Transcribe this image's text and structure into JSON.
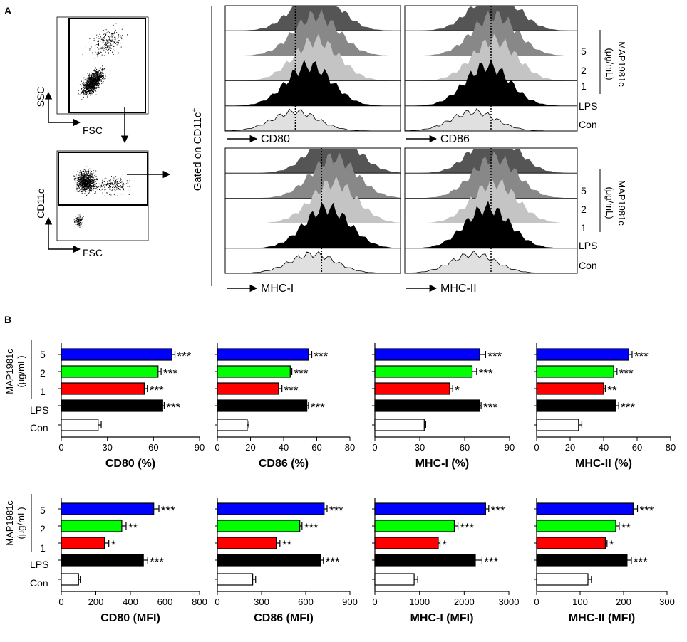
{
  "panel_a": {
    "label": "A",
    "gate_title": "Gated on CD11c",
    "gate_sup": "+",
    "dot1": {
      "y_label": "SSC",
      "x_label": "FSC"
    },
    "dot2": {
      "y_label": "CD11c",
      "x_label": "FSC"
    },
    "groups": [
      "5",
      "2",
      "1",
      "LPS",
      "Con"
    ],
    "dose_label": "MAP1981c",
    "dose_unit": "(μg/mL)",
    "histograms": [
      {
        "marker": "CD80"
      },
      {
        "marker": "CD86"
      },
      {
        "marker": "MHC-I"
      },
      {
        "marker": "MHC-II"
      }
    ],
    "colors": {
      "g5": "#555555",
      "g2": "#888888",
      "g1": "#c4c4c4",
      "lps": "#000000",
      "con": "#e0e0e0"
    }
  },
  "panel_b": {
    "label": "B",
    "dose_label": "MAP1981c",
    "dose_unit": "(μg/mL)",
    "groups": [
      "5",
      "2",
      "1",
      "LPS",
      "Con"
    ],
    "colors": [
      "#0000ff",
      "#00ff00",
      "#ff0000",
      "#000000",
      "#ffffff"
    ]
  },
  "chart_data": [
    {
      "type": "bar",
      "orientation": "horizontal",
      "title": "",
      "xlabel": "CD80 (%)",
      "categories": [
        "5",
        "2",
        "1",
        "LPS",
        "Con"
      ],
      "values": [
        72,
        63,
        54,
        66,
        24
      ],
      "errors": [
        2,
        2,
        2,
        1,
        2
      ],
      "significance": [
        "***",
        "***",
        "***",
        "***",
        ""
      ],
      "xlim": [
        0,
        90
      ],
      "ticks": [
        0,
        30,
        60,
        90
      ]
    },
    {
      "type": "bar",
      "orientation": "horizontal",
      "title": "",
      "xlabel": "CD86 (%)",
      "categories": [
        "5",
        "2",
        "1",
        "LPS",
        "Con"
      ],
      "values": [
        55,
        44,
        37,
        54,
        18
      ],
      "errors": [
        2,
        1,
        2,
        1,
        1
      ],
      "significance": [
        "***",
        "***",
        "***",
        "***",
        ""
      ],
      "xlim": [
        0,
        80
      ],
      "ticks": [
        0,
        20,
        40,
        60,
        80
      ]
    },
    {
      "type": "bar",
      "orientation": "horizontal",
      "title": "",
      "xlabel": "MHC-I (%)",
      "categories": [
        "5",
        "2",
        "1",
        "LPS",
        "Con"
      ],
      "values": [
        70,
        65,
        50,
        70,
        33
      ],
      "errors": [
        4,
        3,
        2,
        1,
        1
      ],
      "significance": [
        "***",
        "***",
        "*",
        "***",
        ""
      ],
      "xlim": [
        0,
        90
      ],
      "ticks": [
        0,
        30,
        60,
        90
      ]
    },
    {
      "type": "bar",
      "orientation": "horizontal",
      "title": "",
      "xlabel": "MHC-II (%)",
      "categories": [
        "5",
        "2",
        "1",
        "LPS",
        "Con"
      ],
      "values": [
        55,
        46,
        40,
        47,
        25
      ],
      "errors": [
        2,
        2,
        1,
        2,
        2
      ],
      "significance": [
        "***",
        "***",
        "**",
        "***",
        ""
      ],
      "xlim": [
        0,
        80
      ],
      "ticks": [
        0,
        20,
        40,
        60,
        80
      ]
    },
    {
      "type": "bar",
      "orientation": "horizontal",
      "title": "",
      "xlabel": "CD80 (MFI)",
      "categories": [
        "5",
        "2",
        "1",
        "LPS",
        "Con"
      ],
      "values": [
        535,
        350,
        250,
        475,
        100
      ],
      "errors": [
        30,
        25,
        25,
        25,
        10
      ],
      "significance": [
        "***",
        "**",
        "*",
        "***",
        ""
      ],
      "xlim": [
        0,
        800
      ],
      "ticks": [
        0,
        200,
        400,
        600,
        800
      ]
    },
    {
      "type": "bar",
      "orientation": "horizontal",
      "title": "",
      "xlabel": "CD86 (MFI)",
      "categories": [
        "5",
        "2",
        "1",
        "LPS",
        "Con"
      ],
      "values": [
        725,
        560,
        400,
        700,
        240
      ],
      "errors": [
        20,
        15,
        25,
        20,
        20
      ],
      "significance": [
        "***",
        "***",
        "**",
        "***",
        ""
      ],
      "xlim": [
        0,
        900
      ],
      "ticks": [
        0,
        300,
        600,
        900
      ]
    },
    {
      "type": "bar",
      "orientation": "horizontal",
      "title": "",
      "xlabel": "MHC-I (MFI)",
      "categories": [
        "5",
        "2",
        "1",
        "LPS",
        "Con"
      ],
      "values": [
        2480,
        1780,
        1420,
        2250,
        880
      ],
      "errors": [
        70,
        80,
        40,
        150,
        80
      ],
      "significance": [
        "***",
        "***",
        "*",
        "***",
        ""
      ],
      "xlim": [
        0,
        3000
      ],
      "ticks": [
        0,
        1000,
        2000,
        3000
      ]
    },
    {
      "type": "bar",
      "orientation": "horizontal",
      "title": "",
      "xlabel": "MHC-II (MFI)",
      "categories": [
        "5",
        "2",
        "1",
        "LPS",
        "Con"
      ],
      "values": [
        222,
        182,
        158,
        208,
        118
      ],
      "errors": [
        10,
        8,
        4,
        10,
        8
      ],
      "significance": [
        "***",
        "**",
        "*",
        "***",
        ""
      ],
      "xlim": [
        0,
        300
      ],
      "ticks": [
        0,
        100,
        200,
        300
      ]
    }
  ]
}
